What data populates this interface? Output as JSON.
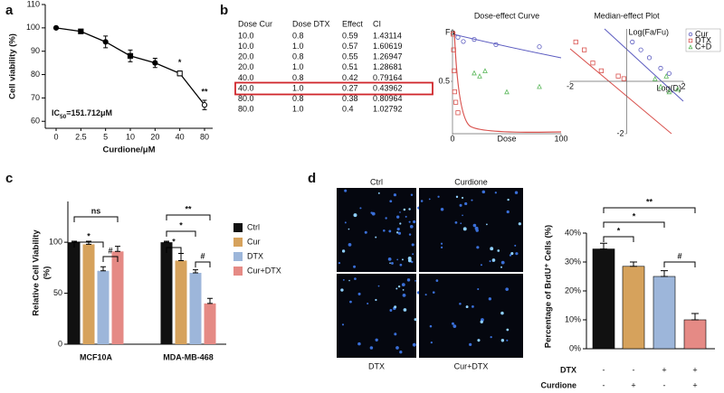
{
  "panel_labels": [
    "a",
    "b",
    "c",
    "d"
  ],
  "table": {
    "columns": [
      "Dose Cur",
      "Dose DTX",
      "Effect",
      "CI"
    ],
    "rows": [
      [
        "10.0",
        "0.8",
        "0.59",
        "1.43114"
      ],
      [
        "10.0",
        "1.0",
        "0.57",
        "1.60619"
      ],
      [
        "20.0",
        "0.8",
        "0.55",
        "1.26947"
      ],
      [
        "20.0",
        "1.0",
        "0.51",
        "1.28681"
      ],
      [
        "40.0",
        "0.8",
        "0.42",
        "0.79164"
      ],
      [
        "40.0",
        "1.0",
        "0.27",
        "0.43962"
      ],
      [
        "80.0",
        "0.8",
        "0.38",
        "0.80964"
      ],
      [
        "80.0",
        "1.0",
        "0.4",
        "1.02792"
      ]
    ],
    "highlight_row": 5
  },
  "images": {
    "labels": [
      "Ctrl",
      "Curdione",
      "DTX",
      "Cur+DTX"
    ]
  },
  "chart_data": [
    {
      "type": "line",
      "x_label": "Curdione/μM",
      "y_label": "Cell viability (%)",
      "categories": [
        "0",
        "2.5",
        "5",
        "10",
        "20",
        "40",
        "80"
      ],
      "series": [
        {
          "color": "#000000",
          "values": [
            100,
            98.5,
            94,
            88,
            85,
            80.5,
            67
          ],
          "errors": [
            0.5,
            0.8,
            2.5,
            2.5,
            2,
            1,
            2
          ]
        }
      ],
      "ylim": [
        57,
        110
      ],
      "yticks": [
        60,
        70,
        80,
        90,
        100,
        110
      ],
      "annotations": [
        "*",
        "**"
      ],
      "ic50_label": {
        "base": "IC",
        "subscript": "50",
        "value": "=151.712μM"
      }
    },
    {
      "type": "scatter",
      "title": "Dose-effect Curve",
      "x_label": "Dose",
      "y_label": "Fa",
      "xlim": [
        0,
        100
      ],
      "ylim": [
        0,
        1
      ],
      "xticks": [
        0,
        100
      ],
      "yticks": [
        0.5
      ],
      "series": [
        {
          "name": "Cur",
          "color": "#5b5bc0",
          "marker": "circle",
          "x": [
            5,
            10,
            20,
            40,
            80
          ],
          "values": [
            0.92,
            0.88,
            0.9,
            0.85,
            0.83
          ]
        },
        {
          "name": "DTX",
          "color": "#d9534f",
          "marker": "square",
          "x": [
            0.5,
            1,
            1.5,
            2,
            3,
            5
          ],
          "values": [
            0.95,
            0.8,
            0.6,
            0.4,
            0.3,
            0.2
          ]
        },
        {
          "name": "C+D",
          "color": "#5cb85c",
          "marker": "triangle",
          "x": [
            20,
            25,
            30,
            50,
            80
          ],
          "values": [
            0.58,
            0.55,
            0.6,
            0.4,
            0.45
          ]
        }
      ]
    },
    {
      "type": "scatter",
      "title": "Median-effect Plot",
      "x_label": "Log(D)",
      "y_label": "Log(Fa/Fu)",
      "xlim": [
        -2,
        2
      ],
      "ylim": [
        -2,
        2
      ],
      "xticks": [
        -2,
        2
      ],
      "yticks": [
        -2
      ],
      "legend": "right",
      "series": [
        {
          "name": "Cur",
          "color": "#5b5bc0",
          "marker": "circle",
          "x": [
            0.2,
            0.5,
            0.8,
            1.2,
            1.5
          ],
          "values": [
            1.5,
            1.2,
            0.9,
            0.5,
            0.3
          ]
        },
        {
          "name": "DTX",
          "color": "#d9534f",
          "marker": "square",
          "x": [
            -1.8,
            -1.5,
            -1.2,
            -0.9,
            -0.3,
            -0.1
          ],
          "values": [
            1.5,
            1.2,
            0.7,
            0.4,
            0.2,
            0.1
          ]
        },
        {
          "name": "C+D",
          "color": "#5cb85c",
          "marker": "triangle",
          "x": [
            1,
            1.2,
            1.4,
            1.5,
            1.8
          ],
          "values": [
            0.1,
            -0.2,
            0.2,
            -0.4,
            -0.3
          ]
        }
      ]
    },
    {
      "type": "bar",
      "y_label": [
        "Relative Cell Viability",
        "(%)"
      ],
      "categories": [
        "MCF10A",
        "MDA-MB-468"
      ],
      "series": [
        {
          "name": "Ctrl",
          "color": "#111111",
          "values": [
            100,
            100
          ],
          "errors": [
            1,
            1
          ]
        },
        {
          "name": "Cur",
          "color": "#d6a25c",
          "values": [
            98,
            82
          ],
          "errors": [
            3,
            7
          ]
        },
        {
          "name": "DTX",
          "color": "#9db6da",
          "values": [
            72,
            70
          ],
          "errors": [
            4,
            3
          ]
        },
        {
          "name": "Cur+DTX",
          "color": "#e58a85",
          "values": [
            91,
            40
          ],
          "errors": [
            5,
            5
          ]
        }
      ],
      "ylim": [
        0,
        140
      ],
      "yticks": [
        0,
        50,
        100
      ],
      "annotations": [
        "ns",
        "*",
        "#",
        "**",
        "*",
        "*",
        "#"
      ]
    },
    {
      "type": "bar",
      "y_label": "Percentage of BrdU⁺ Cells (%)",
      "values": [
        34.5,
        28.5,
        25,
        10
      ],
      "errors": [
        2,
        1.5,
        2,
        2.2
      ],
      "colors": [
        "#111111",
        "#d6a25c",
        "#9db6da",
        "#e58a85"
      ],
      "ylim": [
        0,
        40
      ],
      "yticks": [
        {
          "value": 0,
          "label": "0%"
        },
        {
          "value": 10,
          "label": "10%"
        },
        {
          "value": 20,
          "label": "20%"
        },
        {
          "value": 30,
          "label": "30%"
        },
        {
          "value": 40,
          "label": "40%"
        }
      ],
      "treatments": [
        {
          "name": "DTX",
          "signs": [
            "-",
            "-",
            "+",
            "+"
          ]
        },
        {
          "name": "Curdione",
          "signs": [
            "-",
            "+",
            "-",
            "+"
          ]
        }
      ],
      "annotations": [
        "**",
        "*",
        "*",
        "#"
      ]
    }
  ]
}
